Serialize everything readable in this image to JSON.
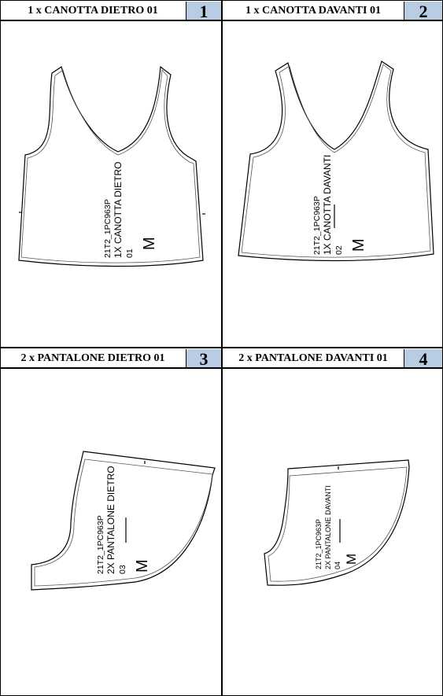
{
  "colors": {
    "header_badge": "#b8cce4",
    "outline": "#000000",
    "inner_line": "#555555"
  },
  "panels": [
    {
      "title": "1 x CANOTTA DIETRO 01",
      "number": "1",
      "label": {
        "code": "21T2_1PC963P",
        "name": "1X CANOTTA DIETRO",
        "index": "01",
        "size": "M"
      }
    },
    {
      "title": "1 x CANOTTA DAVANTI 01",
      "number": "2",
      "label": {
        "code": "21T2_1PC963P",
        "name": "1X CANOTTA DAVANTI",
        "index": "02",
        "size": "M"
      }
    },
    {
      "title": "2 x PANTALONE DIETRO 01",
      "number": "3",
      "label": {
        "code": "21T2_1PC963P",
        "name": "2X PANTALONE DIETRO",
        "index": "03",
        "size": "M"
      }
    },
    {
      "title": "2 x PANTALONE DAVANTI 01",
      "number": "4",
      "label": {
        "code": "21T2_1PC963P",
        "name": "2X PANTALONE DAVANTI",
        "index": "04",
        "size": "M"
      }
    }
  ]
}
